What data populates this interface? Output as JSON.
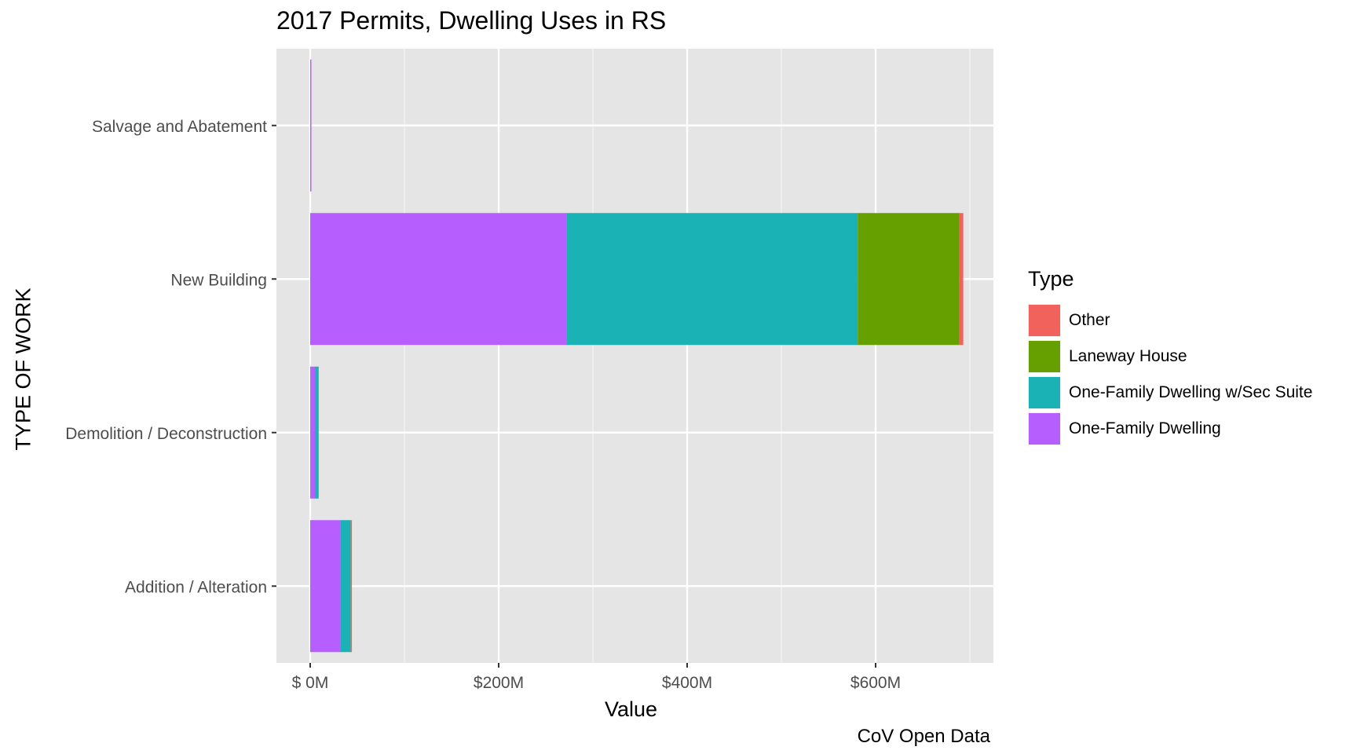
{
  "chart_data": {
    "type": "bar",
    "orientation": "horizontal",
    "stacked": true,
    "title": "2017 Permits, Dwelling Uses in RS",
    "xlabel": "Value",
    "ylabel": "TYPE OF WORK",
    "caption": "CoV Open Data",
    "categories": [
      "Addition / Alteration",
      "Demolition / Deconstruction",
      "New Building",
      "Salvage and Abatement"
    ],
    "x_ticks": [
      {
        "value": 0,
        "label": "$  0M"
      },
      {
        "value": 200,
        "label": "$200M"
      },
      {
        "value": 400,
        "label": "$400M"
      },
      {
        "value": 600,
        "label": "$600M"
      }
    ],
    "xlim": [
      -35,
      725
    ],
    "value_unit": "$M",
    "series": [
      {
        "name": "One-Family Dwelling",
        "color": "#B75EFF",
        "values": [
          32,
          5,
          272,
          1
        ]
      },
      {
        "name": "One-Family Dwelling w/Sec Suite",
        "color": "#1AB2B5",
        "values": [
          11,
          4,
          309,
          0
        ]
      },
      {
        "name": "Laneway House",
        "color": "#66A000",
        "values": [
          0,
          0,
          108,
          0
        ]
      },
      {
        "name": "Other",
        "color": "#F2625C",
        "values": [
          1,
          0,
          4,
          0
        ]
      }
    ],
    "legend": {
      "title": "Type",
      "position": "right",
      "order": [
        "Other",
        "Laneway House",
        "One-Family Dwelling w/Sec Suite",
        "One-Family Dwelling"
      ]
    },
    "grid": true,
    "background": "#E5E5E5"
  }
}
